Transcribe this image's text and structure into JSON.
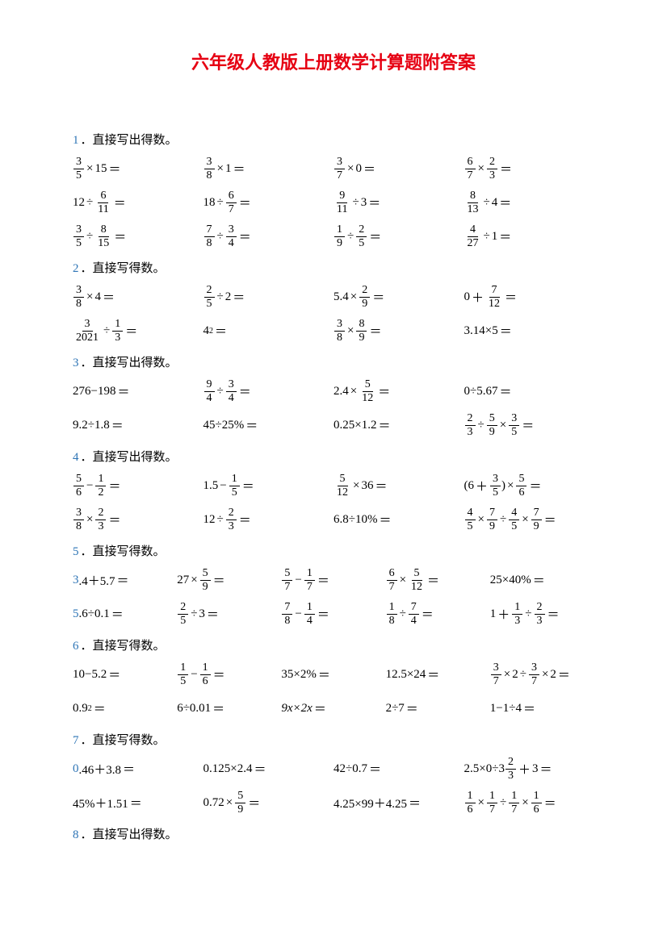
{
  "title": "六年级人教版上册数学计算题附答案",
  "sections": [
    {
      "num": "1",
      "heading": "直接写出得数。"
    },
    {
      "num": "2",
      "heading": "直接写得数。"
    },
    {
      "num": "3",
      "heading": "直接写出得数。"
    },
    {
      "num": "4",
      "heading": "直接写出得数。"
    },
    {
      "num": "5",
      "heading": "直接写得数。"
    },
    {
      "num": "6",
      "heading": "直接写得数。"
    },
    {
      "num": "7",
      "heading": "直接写得数。"
    },
    {
      "num": "8",
      "heading": "直接写出得数。"
    }
  ],
  "colors": {
    "title": "#e60012",
    "number": "#2e75b6",
    "text": "#000000",
    "background": "#ffffff"
  },
  "s1": {
    "r1": [
      {
        "a": "3",
        "b": "5",
        "op": "×",
        "t": "15"
      },
      {
        "a": "3",
        "b": "8",
        "op": "×",
        "t": "1"
      },
      {
        "a": "3",
        "b": "7",
        "op": "×",
        "t": "0"
      },
      {
        "a": "6",
        "b": "7",
        "op": "×",
        "c": "2",
        "d": "3"
      }
    ],
    "r2": [
      {
        "t": "12",
        "op": "÷",
        "a": "6",
        "b": "11"
      },
      {
        "t": "18",
        "op": "÷",
        "a": "6",
        "b": "7"
      },
      {
        "a": "9",
        "b": "11",
        "op": "÷",
        "t": "3"
      },
      {
        "a": "8",
        "b": "13",
        "op": "÷",
        "t": "4"
      }
    ],
    "r3": [
      {
        "a": "3",
        "b": "5",
        "op": "÷",
        "c": "8",
        "d": "15"
      },
      {
        "a": "7",
        "b": "8",
        "op": "÷",
        "c": "3",
        "d": "4"
      },
      {
        "a": "1",
        "b": "9",
        "op": "÷",
        "c": "2",
        "d": "5"
      },
      {
        "a": "4",
        "b": "27",
        "op": "÷",
        "t": "1"
      }
    ]
  },
  "s2": {
    "r1": [
      {
        "a": "3",
        "b": "8",
        "op": "×",
        "t": "4"
      },
      {
        "a": "2",
        "b": "5",
        "op": "÷",
        "t": "2"
      },
      {
        "pre": "5.4",
        "op": "×",
        "a": "2",
        "b": "9"
      },
      {
        "pre": "0",
        "op": "＋",
        "a": "7",
        "b": "12"
      }
    ],
    "r2": [
      {
        "a": "3",
        "b": "2021",
        "op": "÷",
        "c": "1",
        "d": "3"
      },
      {
        "txt": "4",
        "sup": "2"
      },
      {
        "a": "3",
        "b": "8",
        "op": "×",
        "c": "8",
        "d": "9"
      },
      {
        "txt": "3.14×5"
      }
    ]
  },
  "s3": {
    "r1": [
      {
        "txt": "276−198"
      },
      {
        "a": "9",
        "b": "4",
        "op": "÷",
        "c": "3",
        "d": "4"
      },
      {
        "pre": "2.4",
        "op": "×",
        "a": "5",
        "b": "12"
      },
      {
        "txt": "0÷5.67"
      }
    ],
    "r2": [
      {
        "txt": "9.2÷1.8"
      },
      {
        "txt": "45÷25%"
      },
      {
        "txt": "0.25×1.2"
      },
      {
        "a": "2",
        "b": "3",
        "op": "÷",
        "c": "5",
        "d": "9",
        "op2": "×",
        "e": "3",
        "f": "5"
      }
    ]
  },
  "s4": {
    "r1": [
      {
        "a": "5",
        "b": "6",
        "op": "−",
        "c": "1",
        "d": "2"
      },
      {
        "pre": "1.5",
        "op": "−",
        "a": "1",
        "b": "5"
      },
      {
        "a": "5",
        "b": "12",
        "op": "×",
        "t": "36"
      },
      {
        "paren": true,
        "pre": "(6",
        "op": "＋",
        "a": "3",
        "b": "5",
        "post": ")",
        "op2": "×",
        "c": "5",
        "d": "6"
      }
    ],
    "r2": [
      {
        "a": "3",
        "b": "8",
        "op": "×",
        "c": "2",
        "d": "3"
      },
      {
        "pre": "12",
        "op": "÷",
        "a": "2",
        "b": "3"
      },
      {
        "txt": "6.8÷10%"
      },
      {
        "a": "4",
        "b": "5",
        "op": "×",
        "c": "7",
        "d": "9",
        "op2": "÷",
        "e": "4",
        "f": "5",
        "op3": "×",
        "g": "7",
        "h": "9"
      }
    ]
  },
  "s5": {
    "r1": [
      {
        "blue": "3",
        "txt": ".4＋5.7"
      },
      {
        "pre": "27",
        "op": "×",
        "a": "5",
        "b": "9"
      },
      {
        "a": "5",
        "b": "7",
        "op": "−",
        "c": "1",
        "d": "7"
      },
      {
        "a": "6",
        "b": "7",
        "op": "×",
        "c": "5",
        "d": "12"
      },
      {
        "txt": "25×40%"
      }
    ],
    "r2": [
      {
        "blue": "5",
        "txt": ".6÷0.1"
      },
      {
        "a": "2",
        "b": "5",
        "op": "÷",
        "t": "3"
      },
      {
        "a": "7",
        "b": "8",
        "op": "−",
        "c": "1",
        "d": "4"
      },
      {
        "a": "1",
        "b": "8",
        "op": "÷",
        "c": "7",
        "d": "4"
      },
      {
        "pre": "1",
        "op": "＋",
        "a": "1",
        "b": "3",
        "op2": "÷",
        "c": "2",
        "d": "3"
      }
    ]
  },
  "s6": {
    "r1": [
      {
        "txt": "10−5.2"
      },
      {
        "a": "1",
        "b": "5",
        "op": "−",
        "c": "1",
        "d": "6"
      },
      {
        "txt": "35×2%"
      },
      {
        "txt": "12.5×24"
      },
      {
        "a": "3",
        "b": "7",
        "op": "×",
        "t": "2",
        "op2": "÷",
        "c": "3",
        "d": "7",
        "op3": "×",
        "t2": "2"
      }
    ],
    "r2": [
      {
        "txt": "0.9",
        "sup": "2"
      },
      {
        "txt": "6÷0.01"
      },
      {
        "txt": "9x×2x"
      },
      {
        "txt": "2÷7"
      },
      {
        "txt": "1−1÷4"
      }
    ]
  },
  "s7": {
    "r1": [
      {
        "blue": "0",
        "txt": ".46＋3.8"
      },
      {
        "txt": "0.125×2.4"
      },
      {
        "txt": "42÷0.7"
      },
      {
        "pre": "2.5×0÷3",
        "a": "2",
        "b": "3",
        "op": "＋",
        "t": "3"
      }
    ],
    "r2": [
      {
        "txt": "45%＋1.51"
      },
      {
        "pre": "0.72",
        "op": "×",
        "a": "5",
        "b": "9"
      },
      {
        "txt": "4.25×99＋4.25"
      },
      {
        "a": "1",
        "b": "6",
        "op": "×",
        "c": "1",
        "d": "7",
        "op2": "÷",
        "e": "1",
        "f": "7",
        "op3": "×",
        "g": "1",
        "h": "6"
      }
    ]
  }
}
